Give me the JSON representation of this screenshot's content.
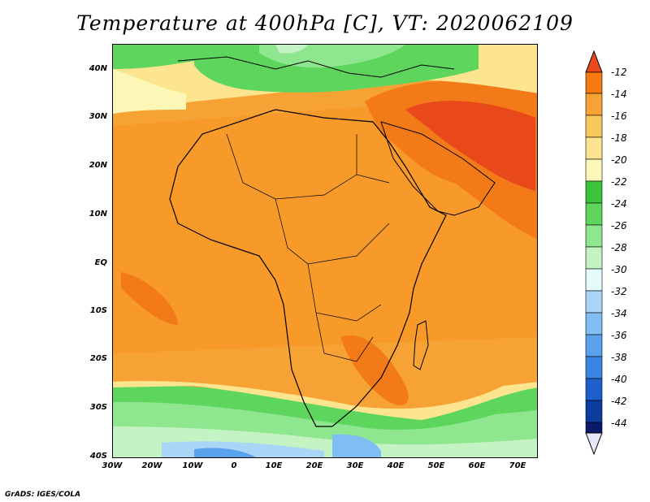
{
  "title": "Temperature at 400hPa [C], VT: 2020062109",
  "footer": "GrADS: IGES/COLA",
  "axes": {
    "lat_labels": [
      "40N",
      "30N",
      "20N",
      "10N",
      "EQ",
      "10S",
      "20S",
      "30S",
      "40S"
    ],
    "lon_labels": [
      "30W",
      "20W",
      "10W",
      "0",
      "10E",
      "20E",
      "30E",
      "40E",
      "50E",
      "60E",
      "70E"
    ]
  },
  "colorbar": {
    "levels": [
      "-12",
      "-14",
      "-16",
      "-18",
      "-20",
      "-22",
      "-24",
      "-26",
      "-28",
      "-30",
      "-32",
      "-34",
      "-36",
      "-38",
      "-40",
      "-42",
      "-44"
    ],
    "colors": [
      "#e8481a",
      "#f77a10",
      "#f7a234",
      "#f9c85c",
      "#fde48e",
      "#fdf7b7",
      "#3ac43a",
      "#5ed65e",
      "#8ee68e",
      "#c3f3c3",
      "#e6fbfb",
      "#a9d6f6",
      "#7fbdf2",
      "#5aa2ec",
      "#3a86e4",
      "#1f5fcc",
      "#0c3d9e",
      "#091a6a"
    ]
  }
}
